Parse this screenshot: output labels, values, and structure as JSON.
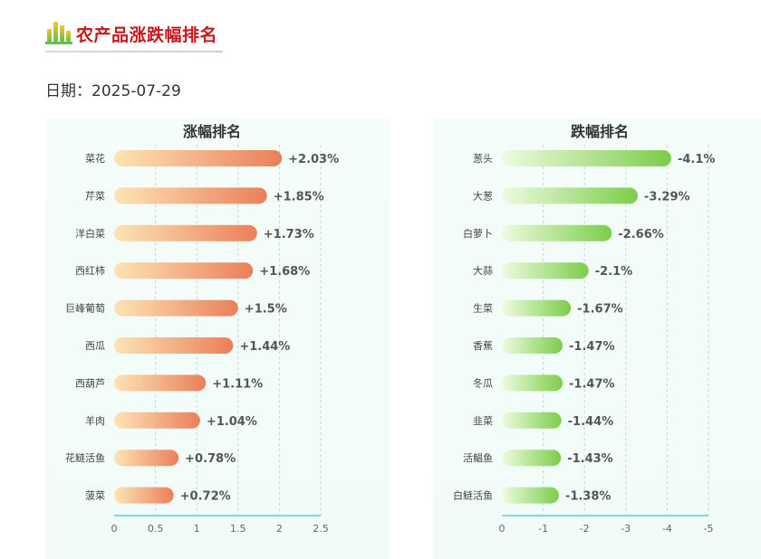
{
  "header": {
    "title": "农产品涨跌幅排名",
    "date_line": "日期：2025-07-29",
    "logo_icon": "bar-chart-icon"
  },
  "colors": {
    "title_red": "#c8161d",
    "rise_start": "#fde4b4",
    "rise_end": "#ea7f5a",
    "fall_start": "#eefbe0",
    "fall_end": "#7ccd4a",
    "axis_line": "#7fd8e0"
  },
  "chart_data": [
    {
      "type": "bar",
      "orientation": "horizontal",
      "title": "涨幅排名",
      "categories": [
        "菜花",
        "芹菜",
        "洋白菜",
        "西红柿",
        "巨峰葡萄",
        "西瓜",
        "西葫芦",
        "羊肉",
        "花鲢活鱼",
        "菠菜"
      ],
      "values": [
        2.03,
        1.85,
        1.73,
        1.68,
        1.5,
        1.44,
        1.11,
        1.04,
        0.78,
        0.72
      ],
      "value_labels": [
        "+2.03%",
        "+1.85%",
        "+1.73%",
        "+1.68%",
        "+1.5%",
        "+1.44%",
        "+1.11%",
        "+1.04%",
        "+0.78%",
        "+0.72%"
      ],
      "xlim": [
        0,
        2.5
      ],
      "ticks": [
        0,
        0.5,
        1,
        1.5,
        2,
        2.5
      ],
      "tick_labels": [
        "0",
        "0.5",
        "1",
        "1.5",
        "2",
        "2.5"
      ],
      "xlabel": "",
      "ylabel": "",
      "grid": "vertical dashed"
    },
    {
      "type": "bar",
      "orientation": "horizontal",
      "title": "跌幅排名",
      "categories": [
        "葱头",
        "大葱",
        "白萝卜",
        "大蒜",
        "生菜",
        "香蕉",
        "冬瓜",
        "韭菜",
        "活鲳鱼",
        "白鲢活鱼"
      ],
      "values": [
        -4.1,
        -3.29,
        -2.66,
        -2.1,
        -1.67,
        -1.47,
        -1.47,
        -1.44,
        -1.43,
        -1.38
      ],
      "value_labels": [
        "-4.1%",
        "-3.29%",
        "-2.66%",
        "-2.1%",
        "-1.67%",
        "-1.47%",
        "-1.47%",
        "-1.44%",
        "-1.43%",
        "-1.38%"
      ],
      "xlim": [
        0,
        -5
      ],
      "ticks": [
        0,
        -1,
        -2,
        -3,
        -4,
        -5
      ],
      "tick_labels": [
        "0",
        "-1",
        "-2",
        "-3",
        "-4",
        "-5"
      ],
      "xlabel": "",
      "ylabel": "",
      "grid": "vertical dashed"
    }
  ]
}
